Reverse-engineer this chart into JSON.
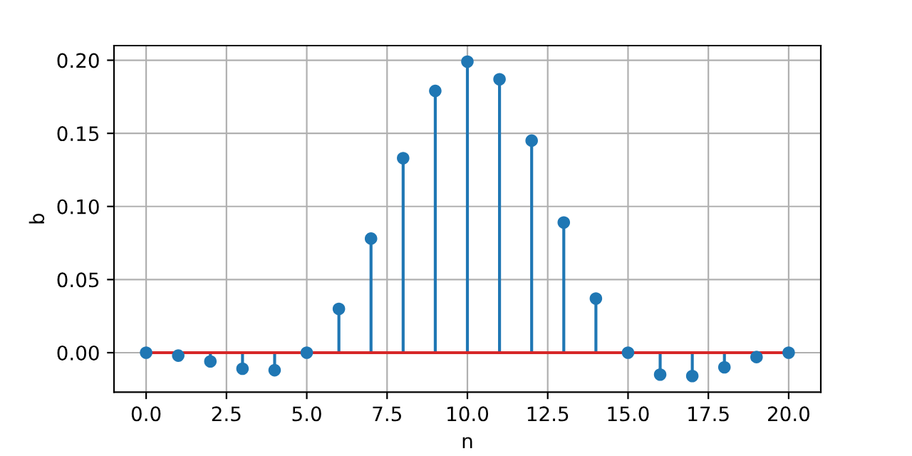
{
  "chart_data": {
    "type": "lollipop",
    "xlabel": "n",
    "ylabel": "b",
    "x": [
      0,
      1,
      2,
      3,
      4,
      5,
      6,
      7,
      8,
      9,
      10,
      11,
      12,
      13,
      14,
      15,
      16,
      17,
      18,
      19,
      20
    ],
    "series": [
      {
        "color": "#1f77b4",
        "values": [
          0,
          -0.002,
          -0.006,
          -0.011,
          -0.012,
          0,
          0.03,
          0.078,
          0.133,
          0.179,
          0.199,
          0.187,
          0.145,
          0.089,
          0.037,
          0,
          -0.015,
          -0.016,
          -0.01,
          -0.003,
          0
        ]
      }
    ],
    "ref_lines": [
      {
        "axis": "y",
        "value": 0,
        "color": "#d62728"
      }
    ],
    "xlim": [
      -1,
      21
    ],
    "ylim": [
      -0.027,
      0.21
    ],
    "xticks": [
      {
        "value": 0,
        "label": "0.0"
      },
      {
        "value": 2.5,
        "label": "2.5"
      },
      {
        "value": 5,
        "label": "5.0"
      },
      {
        "value": 7.5,
        "label": "7.5"
      },
      {
        "value": 10,
        "label": "10.0"
      },
      {
        "value": 12.5,
        "label": "12.5"
      },
      {
        "value": 15,
        "label": "15.0"
      },
      {
        "value": 17.5,
        "label": "17.5"
      },
      {
        "value": 20,
        "label": "20.0"
      }
    ],
    "yticks": [
      {
        "value": 0,
        "label": "0.00"
      },
      {
        "value": 0.05,
        "label": "0.05"
      },
      {
        "value": 0.1,
        "label": "0.10"
      },
      {
        "value": 0.15,
        "label": "0.15"
      },
      {
        "value": 0.2,
        "label": "0.20"
      }
    ],
    "grid": true,
    "marker": "circle"
  }
}
